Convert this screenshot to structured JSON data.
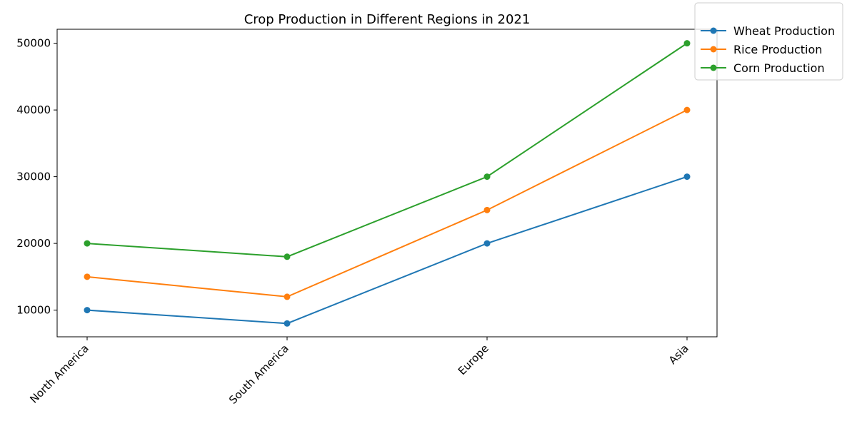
{
  "chart_data": {
    "type": "line",
    "title": "Crop Production in Different Regions in 2021",
    "xlabel": "",
    "ylabel": "",
    "categories": [
      "North America",
      "South America",
      "Europe",
      "Asia"
    ],
    "ylim": [
      6000,
      52100
    ],
    "yticks": [
      10000,
      20000,
      30000,
      40000,
      50000
    ],
    "grid": false,
    "legend_position": "top-right, outside plot",
    "series": [
      {
        "name": "Wheat Production",
        "color": "#1f77b4",
        "marker": "circle",
        "values": [
          10000,
          8000,
          20000,
          30000
        ]
      },
      {
        "name": "Rice Production",
        "color": "#ff7f0e",
        "marker": "circle",
        "values": [
          15000,
          12000,
          25000,
          40000
        ]
      },
      {
        "name": "Corn Production",
        "color": "#2ca02c",
        "marker": "circle",
        "values": [
          20000,
          18000,
          30000,
          50000
        ]
      }
    ]
  }
}
